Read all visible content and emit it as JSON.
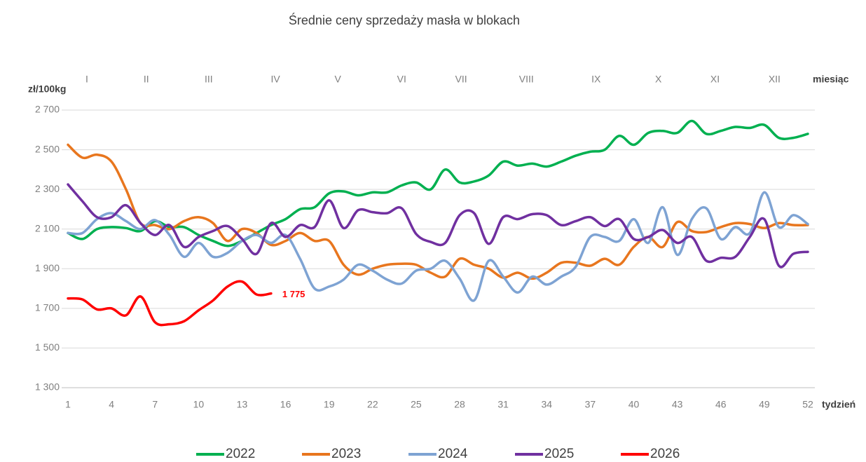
{
  "chart_data": {
    "type": "line",
    "title": "Średnie ceny sprzedaży masła w blokach",
    "y_label": "zł/100kg",
    "x_label": "tydzień",
    "month_axis_label": "miesiąc",
    "x": [
      1,
      2,
      3,
      4,
      5,
      6,
      7,
      8,
      9,
      10,
      11,
      12,
      13,
      14,
      15,
      16,
      17,
      18,
      19,
      20,
      21,
      22,
      23,
      24,
      25,
      26,
      27,
      28,
      29,
      30,
      31,
      32,
      33,
      34,
      35,
      36,
      37,
      38,
      39,
      40,
      41,
      42,
      43,
      44,
      45,
      46,
      47,
      48,
      49,
      50,
      51,
      52
    ],
    "xlim": [
      1,
      52
    ],
    "xticks": [
      1,
      4,
      7,
      10,
      13,
      16,
      19,
      22,
      25,
      28,
      31,
      34,
      37,
      40,
      43,
      46,
      49,
      52
    ],
    "month_ticks": [
      {
        "value": 2.3,
        "label": "I"
      },
      {
        "value": 6.4,
        "label": "II"
      },
      {
        "value": 10.7,
        "label": "III"
      },
      {
        "value": 15.3,
        "label": "IV"
      },
      {
        "value": 19.6,
        "label": "V"
      },
      {
        "value": 24.0,
        "label": "VI"
      },
      {
        "value": 28.1,
        "label": "VII"
      },
      {
        "value": 32.6,
        "label": "VIII"
      },
      {
        "value": 37.4,
        "label": "IX"
      },
      {
        "value": 41.7,
        "label": "X"
      },
      {
        "value": 45.6,
        "label": "XI"
      },
      {
        "value": 49.7,
        "label": "XII"
      }
    ],
    "ylim": [
      1300,
      2700
    ],
    "yticks": [
      {
        "value": 1300,
        "label": "1 300"
      },
      {
        "value": 1500,
        "label": "1 500"
      },
      {
        "value": 1700,
        "label": "1 700"
      },
      {
        "value": 1900,
        "label": "1 900"
      },
      {
        "value": 2100,
        "label": "2 100"
      },
      {
        "value": 2300,
        "label": "2 300"
      },
      {
        "value": 2500,
        "label": "2 500"
      },
      {
        "value": 2700,
        "label": "2 700"
      }
    ],
    "grid": true,
    "legend": "bottom",
    "series": [
      {
        "name": "2022",
        "color": "#00b050",
        "values": [
          2080,
          2050,
          2100,
          2110,
          2105,
          2090,
          2140,
          2110,
          2110,
          2070,
          2040,
          2015,
          2040,
          2080,
          2120,
          2150,
          2200,
          2210,
          2280,
          2290,
          2270,
          2285,
          2285,
          2320,
          2335,
          2300,
          2400,
          2335,
          2340,
          2370,
          2440,
          2420,
          2430,
          2415,
          2440,
          2470,
          2490,
          2500,
          2570,
          2525,
          2585,
          2595,
          2585,
          2645,
          2580,
          2595,
          2615,
          2610,
          2625,
          2560,
          2560,
          2580
        ]
      },
      {
        "name": "2023",
        "color": "#e8761e",
        "values": [
          2525,
          2460,
          2475,
          2440,
          2300,
          2130,
          2120,
          2100,
          2140,
          2160,
          2130,
          2040,
          2100,
          2080,
          2020,
          2040,
          2080,
          2040,
          2040,
          1920,
          1870,
          1900,
          1920,
          1925,
          1920,
          1880,
          1860,
          1950,
          1920,
          1900,
          1855,
          1880,
          1850,
          1880,
          1930,
          1930,
          1915,
          1950,
          1920,
          2010,
          2060,
          2010,
          2135,
          2090,
          2085,
          2110,
          2130,
          2125,
          2105,
          2130,
          2120,
          2120
        ]
      },
      {
        "name": "2024",
        "color": "#7ea3d3",
        "values": [
          2080,
          2080,
          2150,
          2180,
          2140,
          2100,
          2145,
          2070,
          1960,
          2030,
          1960,
          1980,
          2040,
          2070,
          2030,
          2070,
          1950,
          1800,
          1810,
          1845,
          1920,
          1890,
          1845,
          1825,
          1890,
          1900,
          1940,
          1850,
          1740,
          1940,
          1860,
          1780,
          1860,
          1820,
          1860,
          1910,
          2060,
          2060,
          2040,
          2150,
          2030,
          2210,
          1970,
          2150,
          2205,
          2050,
          2110,
          2080,
          2285,
          2110,
          2170,
          2125
        ]
      },
      {
        "name": "2025",
        "color": "#7030a0",
        "values": [
          2325,
          2240,
          2160,
          2160,
          2220,
          2130,
          2070,
          2120,
          2010,
          2060,
          2090,
          2115,
          2050,
          1975,
          2130,
          2060,
          2120,
          2110,
          2245,
          2105,
          2195,
          2185,
          2180,
          2205,
          2075,
          2035,
          2030,
          2170,
          2180,
          2025,
          2160,
          2150,
          2175,
          2170,
          2120,
          2140,
          2160,
          2115,
          2150,
          2050,
          2060,
          2095,
          2030,
          2060,
          1940,
          1955,
          1960,
          2060,
          2150,
          1915,
          1975,
          1985
        ]
      },
      {
        "name": "2026",
        "color": "#ff0000",
        "values": [
          1750,
          1745,
          1695,
          1700,
          1665,
          1760,
          1630,
          1620,
          1635,
          1690,
          1740,
          1810,
          1835,
          1770,
          1775,
          null,
          null,
          null,
          null,
          null,
          null,
          null,
          null,
          null,
          null,
          null,
          null,
          null,
          null,
          null,
          null,
          null,
          null,
          null,
          null,
          null,
          null,
          null,
          null,
          null,
          null,
          null,
          null,
          null,
          null,
          null,
          null,
          null,
          null,
          null,
          null,
          null
        ],
        "value_labels": [
          null,
          null,
          null,
          null,
          null,
          null,
          null,
          null,
          null,
          null,
          null,
          null,
          null,
          null,
          "1 775",
          null,
          null,
          null,
          null,
          null,
          null,
          null,
          null,
          null,
          null,
          null,
          null,
          null,
          null,
          null,
          null,
          null,
          null,
          null,
          null,
          null,
          null,
          null,
          null,
          null,
          null,
          null,
          null,
          null,
          null,
          null,
          null,
          null,
          null,
          null,
          null,
          null
        ]
      }
    ]
  }
}
